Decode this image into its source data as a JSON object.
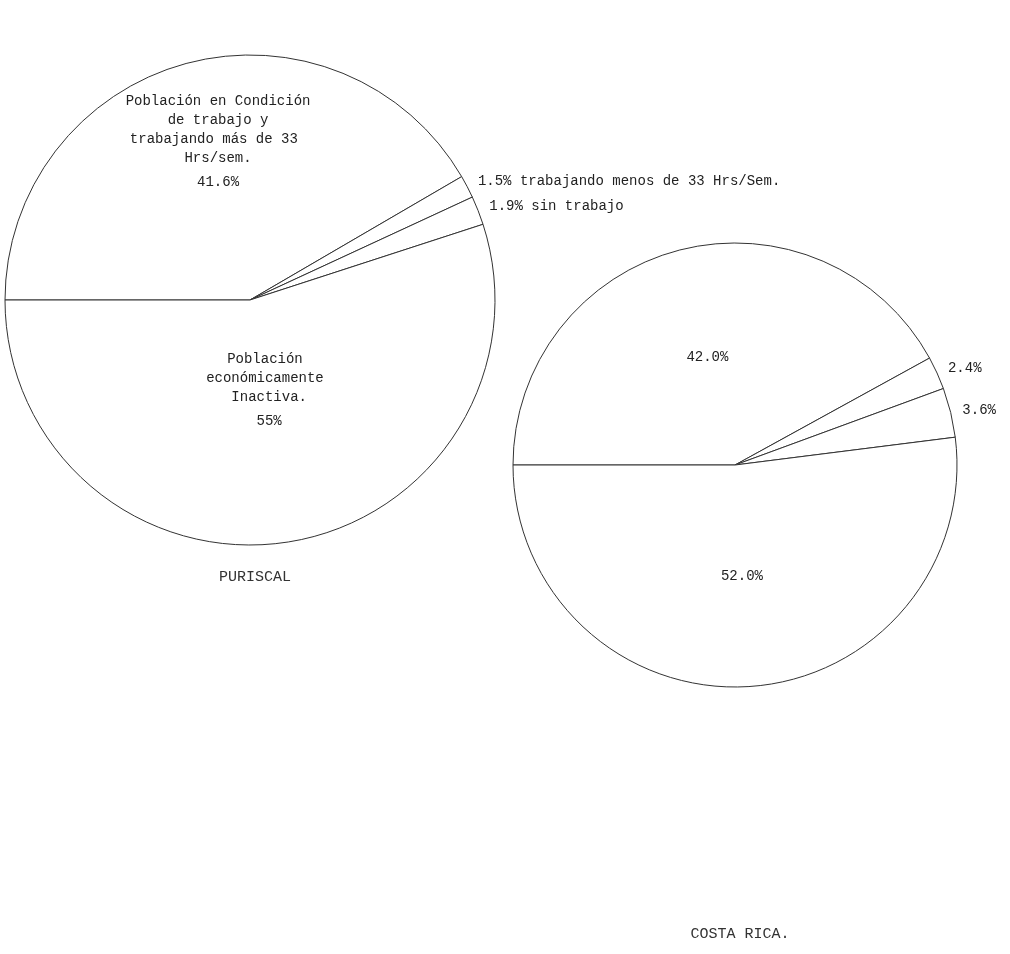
{
  "chart_data": [
    {
      "type": "pie",
      "title": "PURISCAL",
      "categories": [
        "Población en Condición de trabajo y trabajando más de 33 Hrs/sem.",
        "trabajando menos de 33 Hrs/Sem.",
        "sin trabajo",
        "Población económicamente Inactiva."
      ],
      "values": [
        41.6,
        1.5,
        1.9,
        55
      ],
      "value_labels": [
        "41.6%",
        "1.5%",
        "1.9%",
        "55%"
      ],
      "colors": [
        "#ffffff",
        "#ffffff",
        "#ffffff",
        "#ffffff"
      ],
      "data_labels": true,
      "legend": false
    },
    {
      "type": "pie",
      "title": "COSTA RICA.",
      "categories": [
        null,
        null,
        null,
        null
      ],
      "values": [
        42.0,
        2.4,
        3.6,
        52.0
      ],
      "value_labels": [
        "42.0%",
        "2.4%",
        "3.6%",
        "52.0%"
      ],
      "colors": [
        "#ffffff",
        "#ffffff",
        "#ffffff",
        "#ffffff"
      ],
      "data_labels": true,
      "legend": false
    }
  ]
}
